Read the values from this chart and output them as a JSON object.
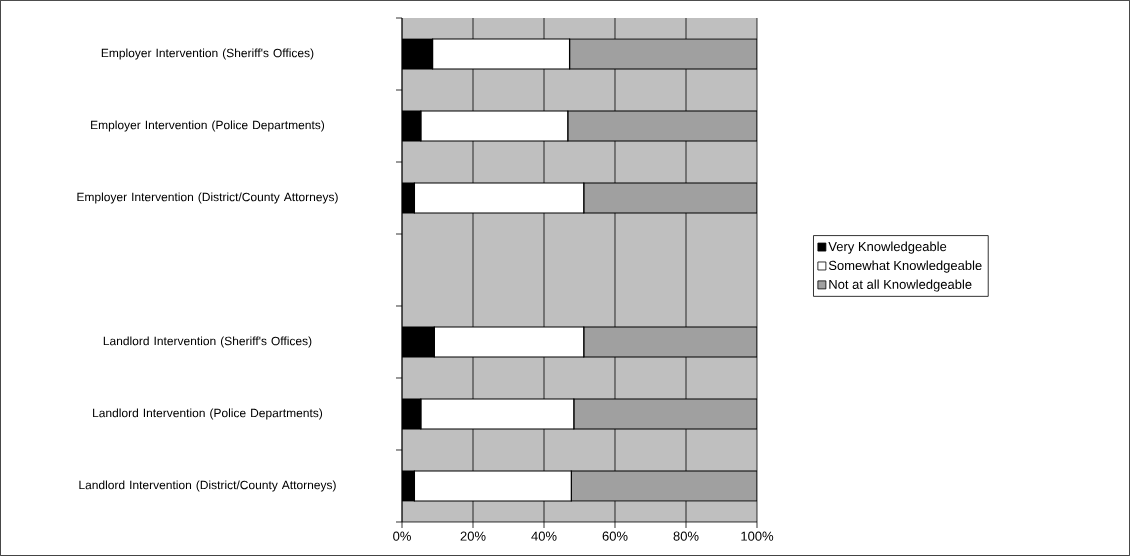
{
  "chart_data": {
    "type": "bar",
    "orientation": "horizontal",
    "stacked": true,
    "categories": [
      "Employer Intervention (Sheriff's Offices)",
      "Employer Intervention (Police Departments)",
      "Employer Intervention (District/County Attorneys)",
      null,
      "Landlord Intervention (Sheriff's Offices)",
      "Landlord Intervention (Police Departments)",
      "Landlord Intervention (District/County Attorneys)"
    ],
    "series": [
      {
        "name": "Very Knowledgeable",
        "color": "#000000",
        "values": [
          8.6,
          5.3,
          3.5,
          null,
          9.1,
          5.3,
          3.5
        ]
      },
      {
        "name": "Somewhat Knowledgeable",
        "color": "#ffffff",
        "values": [
          38.6,
          41.4,
          47.7,
          null,
          42.1,
          43.1,
          44.2
        ]
      },
      {
        "name": "Not at all Knowledgeable",
        "color": "#a0a0a0",
        "values": [
          52.8,
          53.3,
          48.8,
          null,
          48.8,
          51.6,
          52.3
        ]
      }
    ],
    "xlim": [
      0,
      100
    ],
    "xticks": [
      {
        "value": 0,
        "label": "0%"
      },
      {
        "value": 20,
        "label": "20%"
      },
      {
        "value": 40,
        "label": "40%"
      },
      {
        "value": 60,
        "label": "60%"
      },
      {
        "value": 80,
        "label": "80%"
      },
      {
        "value": 100,
        "label": "100%"
      }
    ],
    "grid": "x",
    "legend": "right"
  }
}
